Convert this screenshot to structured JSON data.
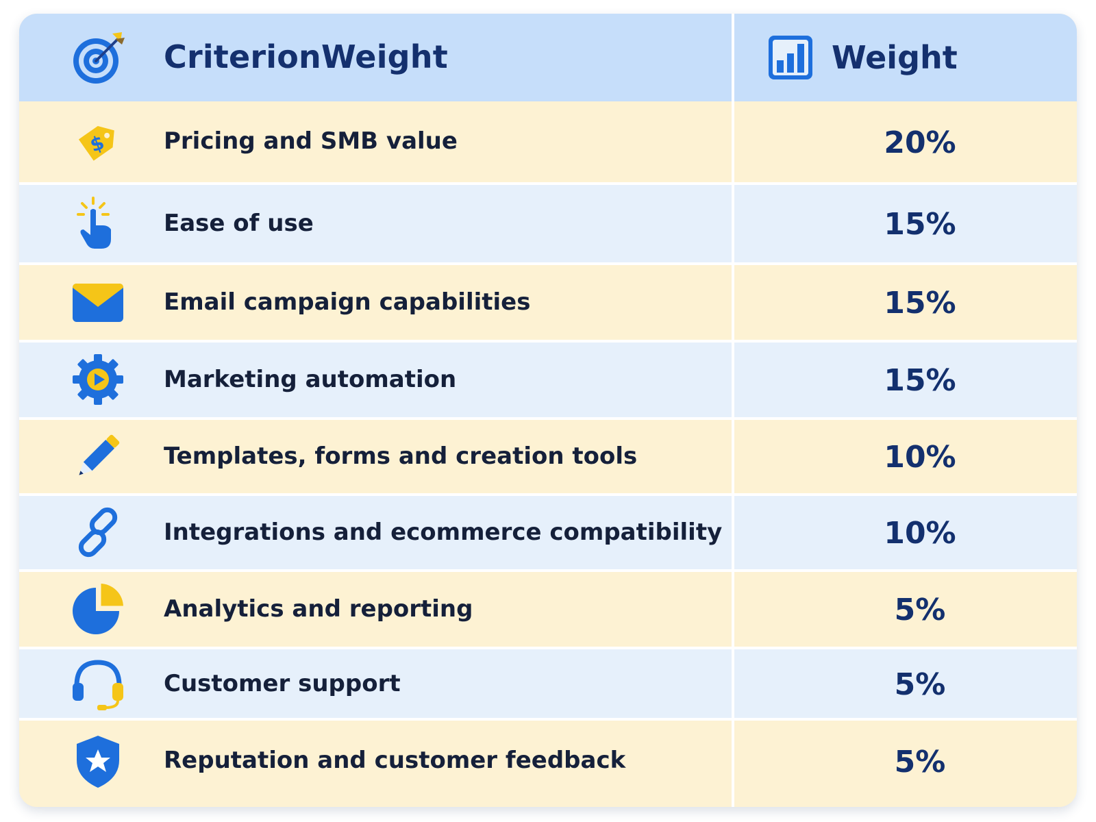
{
  "header": {
    "criterion_label": "CriterionWeight",
    "criterion_icon": "target-icon",
    "weight_label": "Weight",
    "weight_icon": "bar-chart-icon"
  },
  "colors": {
    "header_bg": "#c6defa",
    "row_yellow": "#fdf2d3",
    "row_blue": "#e6f0fb",
    "accent_blue": "#1e6fdc",
    "accent_yellow": "#f5c518",
    "text_dark": "#15203a",
    "text_navy": "#13306e"
  },
  "rows": [
    {
      "label": "Pricing and SMB value",
      "weight": "20%",
      "weight_value": 20,
      "icon": "price-tag-icon"
    },
    {
      "label": "Ease of use",
      "weight": "15%",
      "weight_value": 15,
      "icon": "tap-hand-icon"
    },
    {
      "label": "Email campaign capabilities",
      "weight": "15%",
      "weight_value": 15,
      "icon": "envelope-icon"
    },
    {
      "label": "Marketing automation",
      "weight": "15%",
      "weight_value": 15,
      "icon": "gear-play-icon"
    },
    {
      "label": "Templates, forms and creation tools",
      "weight": "10%",
      "weight_value": 10,
      "icon": "pencil-icon"
    },
    {
      "label": "Integrations and ecommerce compatibility",
      "weight": "10%",
      "weight_value": 10,
      "icon": "link-icon"
    },
    {
      "label": "Analytics and reporting",
      "weight": "5%",
      "weight_value": 5,
      "icon": "pie-chart-icon"
    },
    {
      "label": "Customer support",
      "weight": "5%",
      "weight_value": 5,
      "icon": "headset-icon"
    },
    {
      "label": "Reputation and customer feedback",
      "weight": "5%",
      "weight_value": 5,
      "icon": "shield-star-icon"
    }
  ]
}
